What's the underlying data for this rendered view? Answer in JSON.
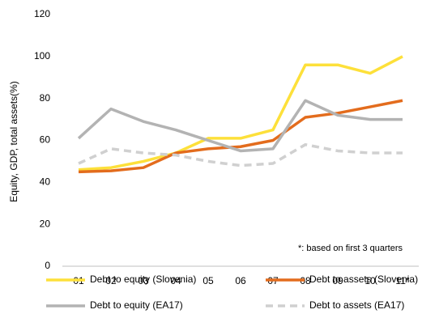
{
  "chart_data": {
    "type": "line",
    "y_label": "Equity, GDP, total assets(%)",
    "annotation": "*: based on first 3 quarters",
    "categories": [
      "01",
      "02",
      "03",
      "04",
      "05",
      "06",
      "07",
      "08",
      "09",
      "10",
      "11*"
    ],
    "series": [
      {
        "name": "Debt to equity (Slovenia)",
        "color": "#fde03a",
        "dashed": false,
        "values": [
          46,
          47,
          50,
          54,
          61,
          61,
          65,
          96,
          96,
          92,
          100
        ]
      },
      {
        "name": "Debt to assets (Slovenia)",
        "color": "#e36c1d",
        "dashed": false,
        "values": [
          45,
          45.5,
          47,
          54,
          56,
          57,
          60,
          71,
          73,
          76,
          79
        ]
      },
      {
        "name": "Debt to equity (EA17)",
        "color": "#b3b3b3",
        "dashed": false,
        "values": [
          61,
          75,
          69,
          65,
          60,
          55,
          56,
          79,
          72,
          70,
          70
        ]
      },
      {
        "name": "Debt to assets (EA17)",
        "color": "#d0d0d0",
        "dashed": true,
        "values": [
          49,
          56,
          54,
          53,
          50,
          48,
          49,
          58,
          55,
          54,
          54
        ]
      }
    ],
    "ylim": [
      0,
      120
    ],
    "yticks": [
      0,
      20,
      40,
      60,
      80,
      100,
      120
    ],
    "grid": false
  }
}
